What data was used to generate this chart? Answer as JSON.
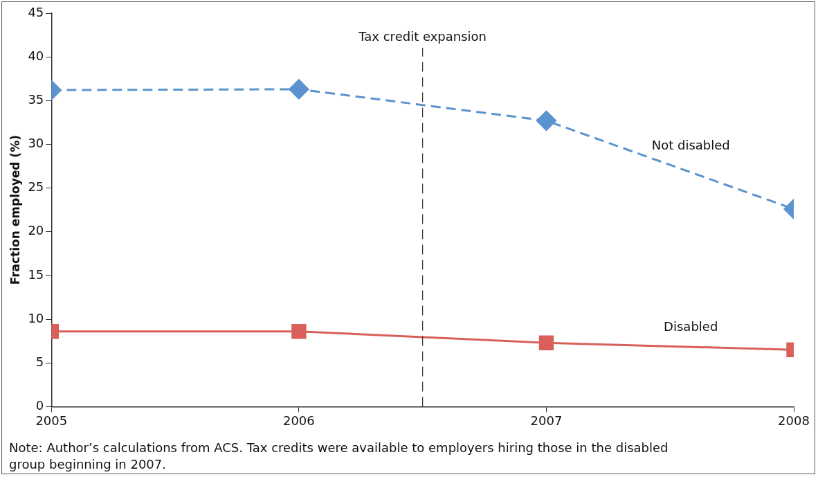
{
  "chart_data": {
    "type": "line",
    "ylabel": "Fraction employed (%)",
    "x": [
      2005,
      2006,
      2007,
      2008
    ],
    "xlim": [
      2005,
      2008
    ],
    "xticks": [
      2005,
      2006,
      2007,
      2008
    ],
    "ylim": [
      0,
      45
    ],
    "yticks": [
      0,
      5,
      10,
      15,
      20,
      25,
      30,
      35,
      40,
      45
    ],
    "series": [
      {
        "name": "Not disabled",
        "color": "#5b93cf",
        "values": [
          36.2,
          36.3,
          32.7,
          22.6
        ],
        "marker": "diamond",
        "line_style": "dashed"
      },
      {
        "name": "Disabled",
        "color": "#d9605a",
        "values": [
          8.6,
          8.6,
          7.3,
          6.5
        ],
        "marker": "square",
        "line_style": "solid"
      }
    ],
    "ref_lines": [
      {
        "axis": "x",
        "value": 2006.5,
        "label": "Tax credit expansion",
        "color": "#333333",
        "line_style": "dashed"
      }
    ],
    "annotations": [
      "Note: Author’s calculations from ACS. Tax credits were available to employers hiring those in the disabled group beginning in 2007."
    ],
    "grid": false,
    "legend": false
  }
}
